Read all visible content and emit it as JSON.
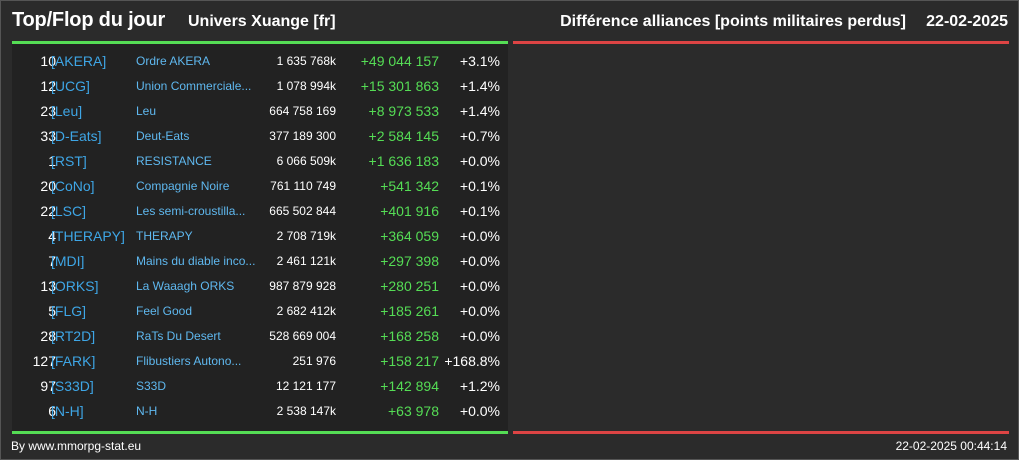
{
  "header": {
    "title": "Top/Flop du jour",
    "universe": "Univers Xuange [fr]",
    "ranking_type": "Différence alliances [points militaires perdus]",
    "date": "22-02-2025"
  },
  "top_rows": [
    {
      "rank": "10",
      "tag": "[AKERA]",
      "name": "Ordre AKERA",
      "points": "1 635 768k",
      "diff": "+49 044 157",
      "pct": "+3.1%"
    },
    {
      "rank": "12",
      "tag": "[UCG]",
      "name": "Union Commerciale...",
      "points": "1 078 994k",
      "diff": "+15 301 863",
      "pct": "+1.4%"
    },
    {
      "rank": "23",
      "tag": "[Leu]",
      "name": "Leu",
      "points": "664 758 169",
      "diff": "+8 973 533",
      "pct": "+1.4%"
    },
    {
      "rank": "33",
      "tag": "[D-Eats]",
      "name": "Deut-Eats",
      "points": "377 189 300",
      "diff": "+2 584 145",
      "pct": "+0.7%"
    },
    {
      "rank": "1",
      "tag": "[RST]",
      "name": "RESISTANCE",
      "points": "6 066 509k",
      "diff": "+1 636 183",
      "pct": "+0.0%"
    },
    {
      "rank": "20",
      "tag": "[CoNo]",
      "name": "Compagnie Noire",
      "points": "761 110 749",
      "diff": "+541 342",
      "pct": "+0.1%"
    },
    {
      "rank": "22",
      "tag": "[LSC]",
      "name": "Les semi-croustilla...",
      "points": "665 502 844",
      "diff": "+401 916",
      "pct": "+0.1%"
    },
    {
      "rank": "4",
      "tag": "[THERAPY]",
      "name": "THERAPY",
      "points": "2 708 719k",
      "diff": "+364 059",
      "pct": "+0.0%"
    },
    {
      "rank": "7",
      "tag": "[MDI]",
      "name": "Mains du diable inco...",
      "points": "2 461 121k",
      "diff": "+297 398",
      "pct": "+0.0%"
    },
    {
      "rank": "13",
      "tag": "[ORKS]",
      "name": "La Waaagh ORKS",
      "points": "987 879 928",
      "diff": "+280 251",
      "pct": "+0.0%"
    },
    {
      "rank": "5",
      "tag": "[FLG]",
      "name": "Feel Good",
      "points": "2 682 412k",
      "diff": "+185 261",
      "pct": "+0.0%"
    },
    {
      "rank": "28",
      "tag": "[RT2D]",
      "name": "RaTs Du Desert",
      "points": "528 669 004",
      "diff": "+168 258",
      "pct": "+0.0%"
    },
    {
      "rank": "127",
      "tag": "[FARK]",
      "name": "Flibustiers Autono...",
      "points": "251 976",
      "diff": "+158 217",
      "pct": "+168.8%"
    },
    {
      "rank": "97",
      "tag": "[S33D]",
      "name": "S33D",
      "points": "12 121 177",
      "diff": "+142 894",
      "pct": "+1.2%"
    },
    {
      "rank": "6",
      "tag": "[N-H]",
      "name": "N-H",
      "points": "2 538 147k",
      "diff": "+63 978",
      "pct": "+0.0%"
    }
  ],
  "footer": {
    "source": "By www.mmorpg-stat.eu",
    "timestamp": "22-02-2025 00:44:14"
  },
  "colors": {
    "background": "#2b2b2b",
    "panel": "#222222",
    "positive": "#55dd55",
    "negative": "#dd4444",
    "tag": "#3ea6e6"
  }
}
